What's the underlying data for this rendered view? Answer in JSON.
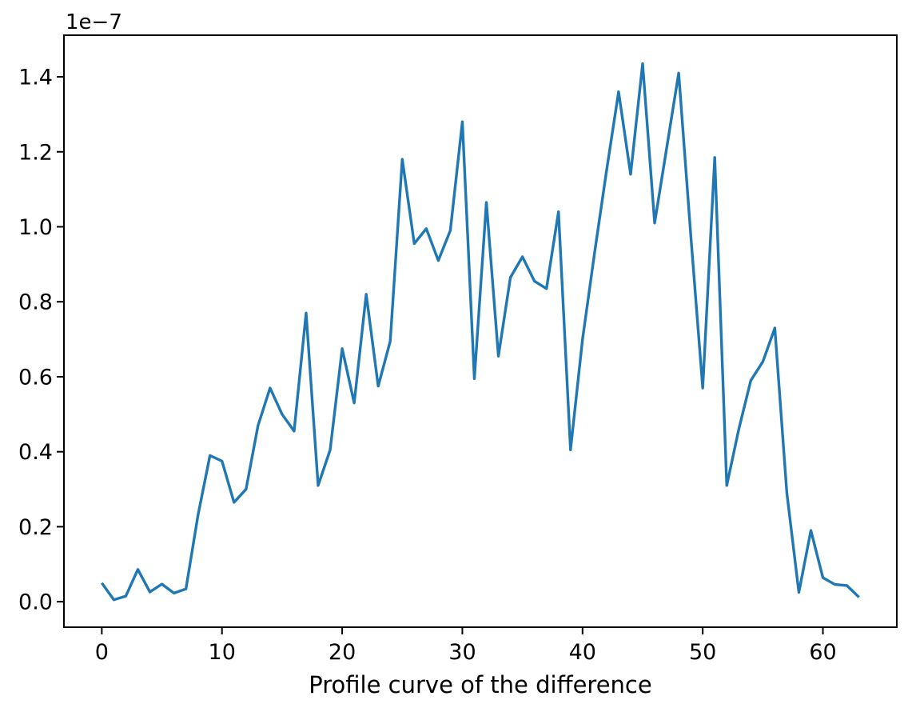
{
  "figure": {
    "background": "#ffffff"
  },
  "chart_data": {
    "type": "line",
    "title": "",
    "xlabel": "Profile curve of the difference",
    "ylabel": "",
    "y_offset_text": "1e−7",
    "y_unit_multiplier": 1e-07,
    "grid": false,
    "legend": null,
    "xlim": [
      -3.15,
      66.15
    ],
    "ylim": [
      -0.068,
      1.511
    ],
    "xticks": {
      "values": [
        0,
        10,
        20,
        30,
        40,
        50,
        60
      ],
      "labels": [
        "0",
        "10",
        "20",
        "30",
        "40",
        "50",
        "60"
      ]
    },
    "yticks": {
      "values": [
        0.0,
        0.2,
        0.4,
        0.6,
        0.8,
        1.0,
        1.2,
        1.4
      ],
      "labels": [
        "0.0",
        "0.2",
        "0.4",
        "0.6",
        "0.8",
        "1.0",
        "1.2",
        "1.4"
      ]
    },
    "series": [
      {
        "name": "profile-curve",
        "color": "#1f77b4",
        "x": [
          0,
          1,
          2,
          3,
          4,
          5,
          6,
          7,
          8,
          9,
          10,
          11,
          12,
          13,
          14,
          15,
          16,
          17,
          18,
          19,
          20,
          21,
          22,
          23,
          24,
          25,
          26,
          27,
          28,
          29,
          30,
          31,
          32,
          33,
          34,
          35,
          36,
          37,
          38,
          39,
          40,
          41,
          42,
          43,
          44,
          45,
          46,
          47,
          48,
          49,
          50,
          51,
          52,
          53,
          54,
          55,
          56,
          57,
          58,
          59,
          60,
          61,
          62,
          63
        ],
        "values": [
          0.05,
          0.005,
          0.015,
          0.086,
          0.026,
          0.047,
          0.023,
          0.034,
          0.23,
          0.39,
          0.375,
          0.265,
          0.3,
          0.47,
          0.57,
          0.5,
          0.455,
          0.77,
          0.31,
          0.405,
          0.675,
          0.53,
          0.82,
          0.575,
          0.695,
          1.18,
          0.955,
          0.995,
          0.91,
          0.99,
          1.28,
          0.595,
          1.065,
          0.655,
          0.865,
          0.92,
          0.855,
          0.835,
          1.04,
          0.405,
          0.7,
          0.93,
          1.15,
          1.36,
          1.14,
          1.435,
          1.01,
          1.21,
          1.41,
          0.98,
          0.57,
          1.185,
          0.31,
          0.46,
          0.59,
          0.64,
          0.73,
          0.29,
          0.025,
          0.19,
          0.064,
          0.046,
          0.043,
          0.012
        ]
      }
    ]
  }
}
